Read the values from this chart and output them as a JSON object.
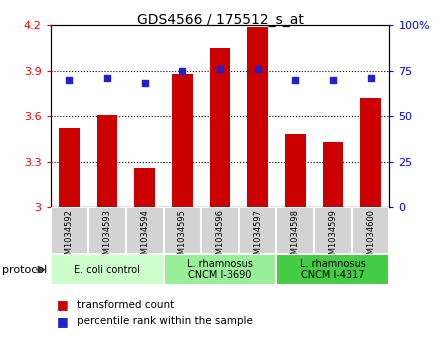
{
  "title": "GDS4566 / 175512_s_at",
  "samples": [
    "GSM1034592",
    "GSM1034593",
    "GSM1034594",
    "GSM1034595",
    "GSM1034596",
    "GSM1034597",
    "GSM1034598",
    "GSM1034599",
    "GSM1034600"
  ],
  "transformed_counts": [
    3.52,
    3.61,
    3.255,
    3.88,
    4.05,
    4.19,
    3.48,
    3.43,
    3.72
  ],
  "percentile_ranks": [
    70,
    71,
    68,
    75,
    76,
    76,
    70,
    70,
    71
  ],
  "ylim_left": [
    3.0,
    4.2
  ],
  "ylim_right": [
    0,
    100
  ],
  "yticks_left": [
    3.0,
    3.3,
    3.6,
    3.9,
    4.2
  ],
  "yticks_right": [
    0,
    25,
    50,
    75,
    100
  ],
  "bar_color": "#cc0000",
  "dot_color": "#2222cc",
  "protocol_groups": [
    {
      "label": "E. coli control",
      "start": 0,
      "end": 3,
      "color": "#ccffcc"
    },
    {
      "label": "L. rhamnosus\nCNCM I-3690",
      "start": 3,
      "end": 6,
      "color": "#99ee99"
    },
    {
      "label": "L. rhamnosus\nCNCM I-4317",
      "start": 6,
      "end": 9,
      "color": "#44cc44"
    }
  ],
  "legend_bar_label": "transformed count",
  "legend_dot_label": "percentile rank within the sample",
  "protocol_label": "protocol",
  "label_color": "#d3d3d3"
}
